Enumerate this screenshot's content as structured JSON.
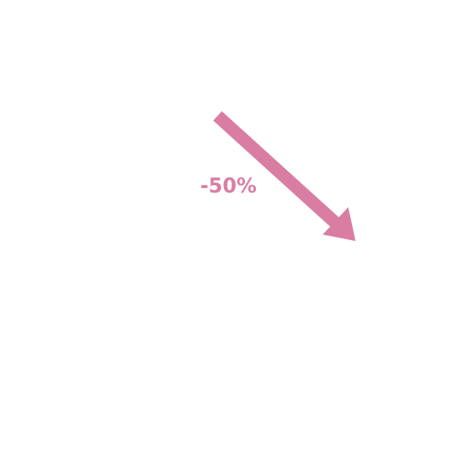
{
  "graphic": {
    "change_label": "-50%",
    "direction_icon": "arrow-down-right-icon",
    "accent_color": "#d97da3"
  }
}
